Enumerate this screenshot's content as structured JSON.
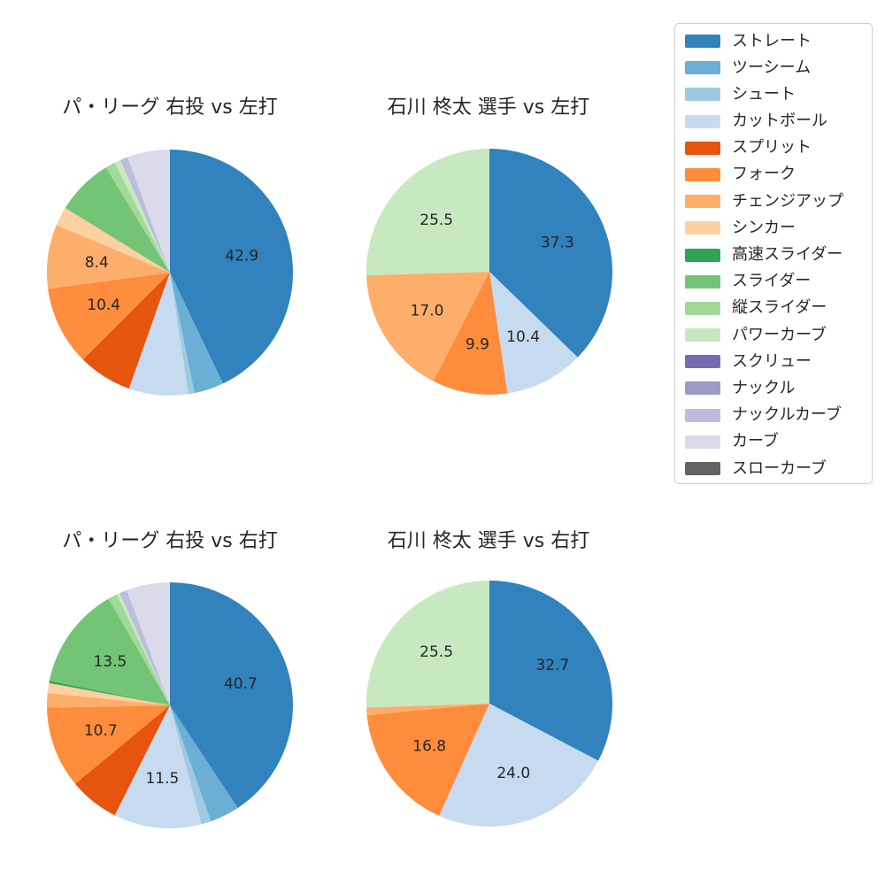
{
  "page": {
    "background": "#ffffff"
  },
  "palette": {
    "ストレート": "#3182bd",
    "ツーシーム": "#6baed6",
    "シュート": "#9ecae1",
    "カットボール": "#c6dbef",
    "スプリット": "#e6550d",
    "フォーク": "#fd8d3c",
    "チェンジアップ": "#fdae6b",
    "シンカー": "#fdd0a2",
    "高速スライダー": "#31a354",
    "スライダー": "#74c476",
    "縦スライダー": "#a1d99b",
    "パワーカーブ": "#c7e9c0",
    "スクリュー": "#756bb1",
    "ナックル": "#9e9ac8",
    "ナックルカーブ": "#bcbddc",
    "カーブ": "#dadaeb",
    "スローカーブ": "#636363"
  },
  "legend": {
    "items": [
      {
        "label": "ストレート",
        "color": "#3182bd"
      },
      {
        "label": "ツーシーム",
        "color": "#6baed6"
      },
      {
        "label": "シュート",
        "color": "#9ecae1"
      },
      {
        "label": "カットボール",
        "color": "#c6dbef"
      },
      {
        "label": "スプリット",
        "color": "#e6550d"
      },
      {
        "label": "フォーク",
        "color": "#fd8d3c"
      },
      {
        "label": "チェンジアップ",
        "color": "#fdae6b"
      },
      {
        "label": "シンカー",
        "color": "#fdd0a2"
      },
      {
        "label": "高速スライダー",
        "color": "#31a354"
      },
      {
        "label": "スライダー",
        "color": "#74c476"
      },
      {
        "label": "縦スライダー",
        "color": "#a1d99b"
      },
      {
        "label": "パワーカーブ",
        "color": "#c7e9c0"
      },
      {
        "label": "スクリュー",
        "color": "#756bb1"
      },
      {
        "label": "ナックル",
        "color": "#9e9ac8"
      },
      {
        "label": "ナックルカーブ",
        "color": "#bcbddc"
      },
      {
        "label": "カーブ",
        "color": "#dadaeb"
      },
      {
        "label": "スローカーブ",
        "color": "#636363"
      }
    ]
  },
  "chart_data": [
    {
      "type": "pie",
      "title": "パ・リーグ 右投 vs 左打",
      "start_angle": "top",
      "direction": "clockwise",
      "label_distance": 0.6,
      "slices": [
        {
          "name": "ストレート",
          "value": 42.9,
          "label": "42.9"
        },
        {
          "name": "ツーシーム",
          "value": 3.9,
          "label": ""
        },
        {
          "name": "シュート",
          "value": 0.8,
          "label": ""
        },
        {
          "name": "カットボール",
          "value": 7.8,
          "label": ""
        },
        {
          "name": "スプリット",
          "value": 7.1,
          "label": ""
        },
        {
          "name": "フォーク",
          "value": 10.4,
          "label": "10.4"
        },
        {
          "name": "チェンジアップ",
          "value": 8.4,
          "label": "8.4"
        },
        {
          "name": "シンカー",
          "value": 2.5,
          "label": ""
        },
        {
          "name": "スライダー",
          "value": 7.5,
          "label": ""
        },
        {
          "name": "縦スライダー",
          "value": 1.3,
          "label": ""
        },
        {
          "name": "パワーカーブ",
          "value": 0.8,
          "label": ""
        },
        {
          "name": "ナックルカーブ",
          "value": 1.0,
          "label": ""
        },
        {
          "name": "カーブ",
          "value": 5.6,
          "label": ""
        }
      ]
    },
    {
      "type": "pie",
      "title": "石川 柊太 選手 vs 左打",
      "start_angle": "top",
      "direction": "clockwise",
      "label_distance": 0.6,
      "slices": [
        {
          "name": "ストレート",
          "value": 37.3,
          "label": "37.3"
        },
        {
          "name": "カットボール",
          "value": 10.4,
          "label": "10.4"
        },
        {
          "name": "フォーク",
          "value": 9.9,
          "label": "9.9"
        },
        {
          "name": "チェンジアップ",
          "value": 17.0,
          "label": "17.0"
        },
        {
          "name": "パワーカーブ",
          "value": 25.5,
          "label": "25.5"
        }
      ]
    },
    {
      "type": "pie",
      "title": "パ・リーグ 右投 vs 右打",
      "start_angle": "top",
      "direction": "clockwise",
      "label_distance": 0.6,
      "slices": [
        {
          "name": "ストレート",
          "value": 40.7,
          "label": "40.7"
        },
        {
          "name": "ツーシーム",
          "value": 3.9,
          "label": ""
        },
        {
          "name": "シュート",
          "value": 1.3,
          "label": ""
        },
        {
          "name": "カットボール",
          "value": 11.5,
          "label": "11.5"
        },
        {
          "name": "スプリット",
          "value": 6.6,
          "label": ""
        },
        {
          "name": "フォーク",
          "value": 10.7,
          "label": "10.7"
        },
        {
          "name": "チェンジアップ",
          "value": 1.9,
          "label": ""
        },
        {
          "name": "シンカー",
          "value": 1.3,
          "label": ""
        },
        {
          "name": "高速スライダー",
          "value": 0.3,
          "label": ""
        },
        {
          "name": "スライダー",
          "value": 13.5,
          "label": "13.5"
        },
        {
          "name": "縦スライダー",
          "value": 1.2,
          "label": ""
        },
        {
          "name": "パワーカーブ",
          "value": 0.4,
          "label": ""
        },
        {
          "name": "ナックルカーブ",
          "value": 1.0,
          "label": ""
        },
        {
          "name": "カーブ",
          "value": 5.7,
          "label": ""
        }
      ]
    },
    {
      "type": "pie",
      "title": "石川 柊太 選手 vs 右打",
      "start_angle": "top",
      "direction": "clockwise",
      "label_distance": 0.6,
      "slices": [
        {
          "name": "ストレート",
          "value": 32.7,
          "label": "32.7"
        },
        {
          "name": "カットボール",
          "value": 24.0,
          "label": "24.0"
        },
        {
          "name": "フォーク",
          "value": 16.8,
          "label": "16.8"
        },
        {
          "name": "チェンジアップ",
          "value": 1.0,
          "label": ""
        },
        {
          "name": "パワーカーブ",
          "value": 25.5,
          "label": "25.5"
        }
      ]
    }
  ]
}
